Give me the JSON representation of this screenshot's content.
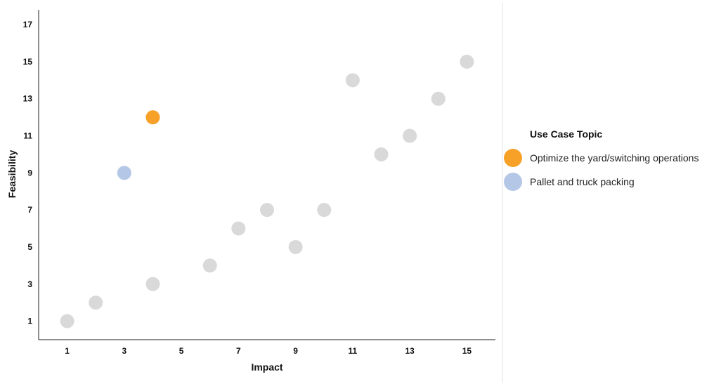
{
  "chart_data": {
    "type": "scatter",
    "xlabel": "Impact",
    "ylabel": "Feasibility",
    "xlim": [
      0,
      16
    ],
    "ylim": [
      0,
      17.8
    ],
    "x_ticks": [
      1,
      3,
      5,
      7,
      9,
      11,
      13,
      15
    ],
    "y_ticks": [
      1,
      3,
      5,
      7,
      9,
      11,
      13,
      15,
      17
    ],
    "grid": false,
    "legend_position": "right",
    "legend_title": "Use Case Topic",
    "default_color": "#d9d9d9",
    "points": [
      {
        "x": 1,
        "y": 1,
        "series": null
      },
      {
        "x": 2,
        "y": 2,
        "series": null
      },
      {
        "x": 3,
        "y": 9,
        "series": "Pallet and truck packing"
      },
      {
        "x": 4,
        "y": 3,
        "series": null
      },
      {
        "x": 4,
        "y": 12,
        "series": "Optimize the yard/switching operations"
      },
      {
        "x": 6,
        "y": 4,
        "series": null
      },
      {
        "x": 7,
        "y": 6,
        "series": null
      },
      {
        "x": 8,
        "y": 7,
        "series": null
      },
      {
        "x": 9,
        "y": 5,
        "series": null
      },
      {
        "x": 10,
        "y": 7,
        "series": null
      },
      {
        "x": 11,
        "y": 14,
        "series": null
      },
      {
        "x": 12,
        "y": 10,
        "series": null
      },
      {
        "x": 13,
        "y": 11,
        "series": null
      },
      {
        "x": 14,
        "y": 13,
        "series": null
      },
      {
        "x": 15,
        "y": 15,
        "series": null
      }
    ],
    "series": [
      {
        "name": "Optimize the yard/switching operations",
        "color": "#f7a128"
      },
      {
        "name": "Pallet and truck packing",
        "color": "#b4c7e7"
      }
    ]
  }
}
